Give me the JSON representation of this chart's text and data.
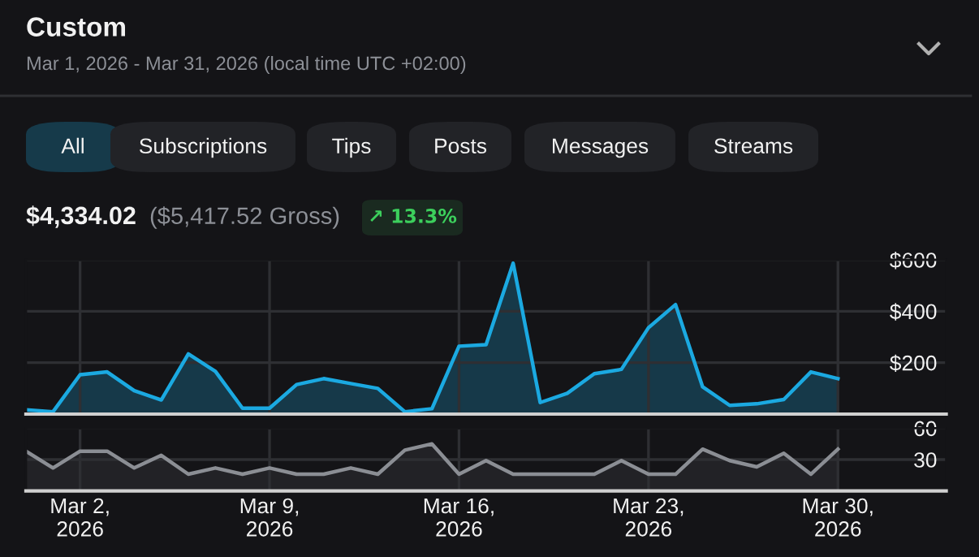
{
  "chart_data": [
    {
      "type": "area",
      "title": "Custom",
      "subtitle": "Mar 1, 2026 - Mar 31, 2026 (local time UTC +02:00)",
      "annotations": [
        "All",
        "Subscriptions",
        "Tips",
        "Posts",
        "Messages",
        "Streams",
        "$4,334.02",
        "($5,417.52 Gross)",
        "↗ 13.3%"
      ],
      "x": [
        "2026-02-28",
        "2026-03-01",
        "2026-03-02",
        "2026-03-03",
        "2026-03-04",
        "2026-03-05",
        "2026-03-06",
        "2026-03-07",
        "2026-03-08",
        "2026-03-09",
        "2026-03-10",
        "2026-03-11",
        "2026-03-12",
        "2026-03-13",
        "2026-03-14",
        "2026-03-15",
        "2026-03-16",
        "2026-03-17",
        "2026-03-18",
        "2026-03-19",
        "2026-03-20",
        "2026-03-21",
        "2026-03-22",
        "2026-03-23",
        "2026-03-24",
        "2026-03-25",
        "2026-03-26",
        "2026-03-27",
        "2026-03-28",
        "2026-03-29",
        "2026-03-30"
      ],
      "series": [
        {
          "color": "#1ba9e1",
          "values": [
            17,
            9,
            153,
            164,
            91,
            55,
            234,
            166,
            23,
            23,
            115,
            138,
            119,
            100,
            9,
            21,
            264,
            270,
            587,
            45,
            81,
            157,
            174,
            336,
            426,
            106,
            34,
            40,
            57,
            164,
            138
          ]
        }
      ],
      "xlim": [
        "2026-02-28",
        "2026-04-03"
      ],
      "xticks": [
        {
          "value": "2026-03-02",
          "label": null
        },
        {
          "value": "2026-03-09",
          "label": null
        },
        {
          "value": "2026-03-16",
          "label": null
        },
        {
          "value": "2026-03-23",
          "label": null
        },
        {
          "value": "2026-03-30",
          "label": null
        }
      ],
      "ylim": [
        0,
        600
      ],
      "yticks": [
        {
          "value": 200,
          "label": "$200"
        },
        {
          "value": 400,
          "label": "$400"
        },
        {
          "value": 600,
          "label": "$600"
        }
      ],
      "grid": true,
      "tick_labels": "y"
    },
    {
      "type": "area",
      "x": [
        "2026-02-28",
        "2026-03-01",
        "2026-03-02",
        "2026-03-03",
        "2026-03-04",
        "2026-03-05",
        "2026-03-06",
        "2026-03-07",
        "2026-03-08",
        "2026-03-09",
        "2026-03-10",
        "2026-03-11",
        "2026-03-12",
        "2026-03-13",
        "2026-03-14",
        "2026-03-15",
        "2026-03-16",
        "2026-03-17",
        "2026-03-18",
        "2026-03-19",
        "2026-03-20",
        "2026-03-21",
        "2026-03-22",
        "2026-03-23",
        "2026-03-24",
        "2026-03-25",
        "2026-03-26",
        "2026-03-27",
        "2026-03-28",
        "2026-03-29",
        "2026-03-30"
      ],
      "series": [
        {
          "color": "#8b8e94",
          "values": [
            38,
            22,
            38,
            38,
            22,
            34,
            16,
            22,
            16,
            22,
            16,
            16,
            22,
            16,
            39,
            45,
            16,
            29,
            16,
            16,
            16,
            16,
            29,
            16,
            16,
            40,
            29,
            23,
            36,
            16,
            40
          ]
        }
      ],
      "xlim": [
        "2026-02-28",
        "2026-04-03"
      ],
      "xticks": [
        {
          "value": "2026-03-02",
          "label": "Mar 2,\n2026"
        },
        {
          "value": "2026-03-09",
          "label": "Mar 9,\n2026"
        },
        {
          "value": "2026-03-16",
          "label": "Mar 16,\n2026"
        },
        {
          "value": "2026-03-23",
          "label": "Mar 23,\n2026"
        },
        {
          "value": "2026-03-30",
          "label": "Mar 30,\n2026"
        }
      ],
      "ylim": [
        0,
        60
      ],
      "yticks": [
        30,
        60
      ],
      "grid": true
    }
  ]
}
